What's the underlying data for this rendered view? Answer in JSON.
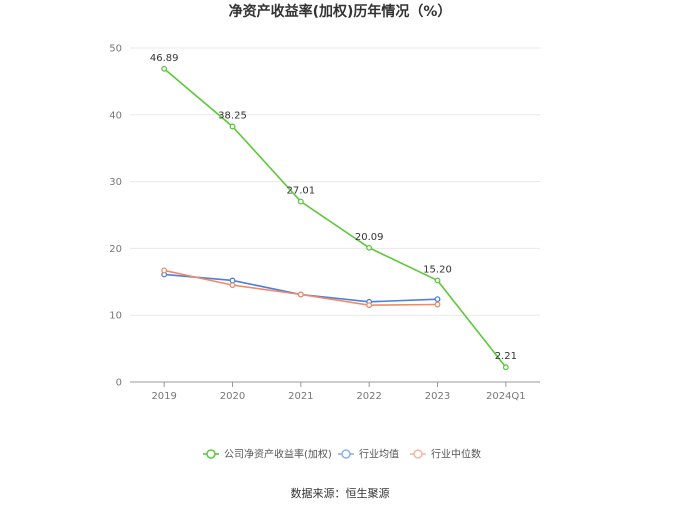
{
  "chart_data": {
    "type": "line",
    "title": "净资产收益率(加权)历年情况（%）",
    "categories": [
      "2019",
      "2020",
      "2021",
      "2022",
      "2023",
      "2024Q1"
    ],
    "ylim": [
      0,
      50
    ],
    "yticks": [
      0,
      10,
      20,
      30,
      40,
      50
    ],
    "grid": true,
    "legend_position": "bottom",
    "series": [
      {
        "name": "公司净资产收益率(加权)",
        "color": "#5cc83a",
        "values": [
          46.89,
          38.25,
          27.01,
          20.09,
          15.2,
          2.21
        ],
        "labels": [
          "46.89",
          "38.25",
          "27.01",
          "20.09",
          "15.20",
          "2.21"
        ]
      },
      {
        "name": "行业均值",
        "color": "#4e7fd9",
        "values": [
          16.1,
          15.2,
          13.1,
          12.0,
          12.4,
          null
        ]
      },
      {
        "name": "行业中位数",
        "color": "#f08a6a",
        "values": [
          16.7,
          14.5,
          13.1,
          11.5,
          11.6,
          null
        ]
      }
    ],
    "legend_colors": [
      "#5cc83a",
      "#8fb0ee",
      "#f5b8a2"
    ]
  },
  "source": "数据来源：恒生聚源"
}
